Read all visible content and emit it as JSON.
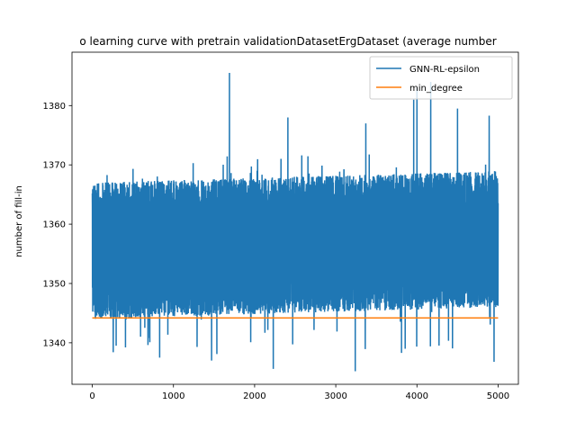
{
  "chart_data": {
    "type": "line",
    "title": "RL_eps_v_decay_max_deep learning curve with pretrain validationDatasetErgDataset (average number of fill-in)",
    "title_visible": "o learning curve with pretrain validationDatasetErgDataset (average number",
    "xlabel": "",
    "ylabel": "number of fill-in",
    "xlim": [
      -250,
      5250
    ],
    "ylim": [
      1333,
      1389
    ],
    "xticks": [
      0,
      1000,
      2000,
      3000,
      4000,
      5000
    ],
    "yticks": [
      1340,
      1350,
      1360,
      1370,
      1380
    ],
    "legend_position": "top-right",
    "grid": false,
    "series": [
      {
        "name": "GNN-RL-epsilon",
        "color": "#1f77b4",
        "x_range": [
          0,
          5000
        ],
        "num_points": 5001,
        "center": 1355.0,
        "band_low": 1344.0,
        "band_high": 1367.0,
        "notable_points": [
          {
            "x": 1690,
            "y": 1385.5
          },
          {
            "x": 3240,
            "y": 1335.2
          },
          {
            "x": 2230,
            "y": 1335.6
          },
          {
            "x": 3960,
            "y": 1381.0
          },
          {
            "x": 4170,
            "y": 1384.0
          },
          {
            "x": 4000,
            "y": 1383.0
          },
          {
            "x": 4950,
            "y": 1336.8
          },
          {
            "x": 4500,
            "y": 1379.5
          },
          {
            "x": 1470,
            "y": 1337.0
          },
          {
            "x": 830,
            "y": 1337.5
          },
          {
            "x": 3810,
            "y": 1338.3
          },
          {
            "x": 2410,
            "y": 1378.0
          },
          {
            "x": 4890,
            "y": 1378.3
          },
          {
            "x": 3370,
            "y": 1377.0
          }
        ]
      },
      {
        "name": "min_degree",
        "color": "#ff7f0e",
        "x": [
          0,
          5000
        ],
        "values": [
          1344.2,
          1344.2
        ]
      }
    ]
  }
}
